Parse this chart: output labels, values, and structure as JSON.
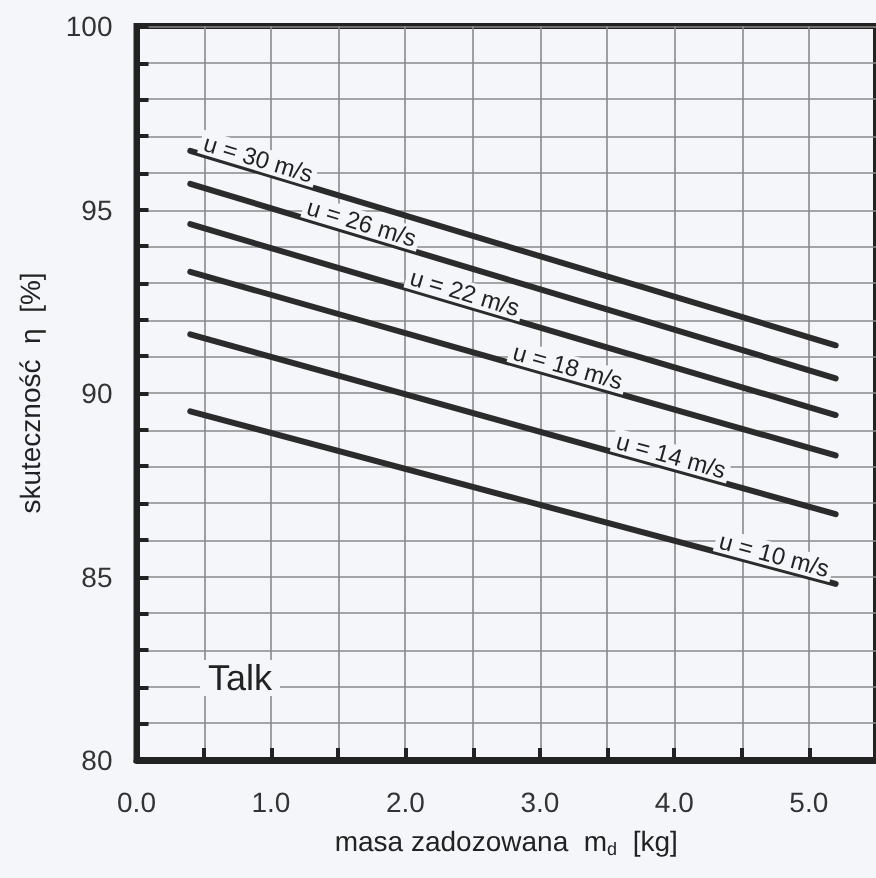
{
  "chart_data": {
    "type": "line",
    "xlabel": "masa zadozowana  m$_{d}$  [kg]",
    "ylabel": "skuteczność  η  [%]",
    "xlim": [
      0,
      5.5
    ],
    "xticks": [
      {
        "value": 0,
        "label": "0.0"
      },
      {
        "value": 0.5,
        "label": null
      },
      {
        "value": 1,
        "label": "1.0"
      },
      {
        "value": 1.5,
        "label": null
      },
      {
        "value": 2,
        "label": "2.0"
      },
      {
        "value": 2.5,
        "label": null
      },
      {
        "value": 3,
        "label": "3.0"
      },
      {
        "value": 3.5,
        "label": null
      },
      {
        "value": 4,
        "label": "4.0"
      },
      {
        "value": 4.5,
        "label": null
      },
      {
        "value": 5,
        "label": "5.0"
      }
    ],
    "ylim": [
      80,
      100
    ],
    "yticks": [
      80,
      {
        "value": 81,
        "label": null
      },
      {
        "value": 82,
        "label": null
      },
      {
        "value": 83,
        "label": null
      },
      {
        "value": 84,
        "label": null
      },
      85,
      {
        "value": 86,
        "label": null
      },
      {
        "value": 87,
        "label": null
      },
      {
        "value": 88,
        "label": null
      },
      {
        "value": 89,
        "label": null
      },
      90,
      {
        "value": 91,
        "label": null
      },
      {
        "value": 92,
        "label": null
      },
      {
        "value": 93,
        "label": null
      },
      {
        "value": 94,
        "label": null
      },
      95,
      {
        "value": 96,
        "label": null
      },
      {
        "value": 97,
        "label": null
      },
      {
        "value": 98,
        "label": null
      },
      {
        "value": 99,
        "label": null
      },
      100
    ],
    "grid": true,
    "legend": false,
    "marker": "none",
    "line_style": "solid",
    "x": [
      0.4,
      5.2
    ],
    "series": [
      {
        "name": "u = 30 m/s",
        "color": "#2b2b2b",
        "values": [
          96.6,
          91.3
        ]
      },
      {
        "name": "u = 26 m/s",
        "color": "#2b2b2b",
        "values": [
          95.7,
          90.4
        ]
      },
      {
        "name": "u = 22 m/s",
        "color": "#2b2b2b",
        "values": [
          94.6,
          89.4
        ]
      },
      {
        "name": "u = 18 m/s",
        "color": "#2b2b2b",
        "values": [
          93.3,
          88.3
        ]
      },
      {
        "name": "u = 14 m/s",
        "color": "#2b2b2b",
        "values": [
          91.6,
          86.7
        ]
      },
      {
        "name": "u = 10 m/s",
        "color": "#2b2b2b",
        "values": [
          89.5,
          84.8
        ]
      }
    ],
    "annotations": [
      "Talk"
    ]
  }
}
